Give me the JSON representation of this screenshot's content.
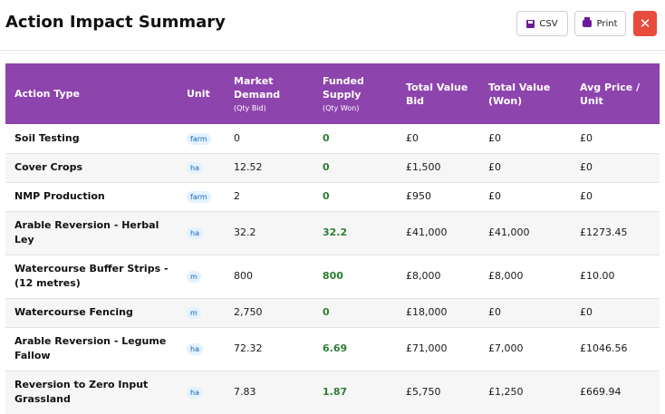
{
  "header": {
    "title": "Action Impact Summary",
    "csv_label": "CSV",
    "print_label": "Print",
    "close_label": "✕"
  },
  "table": {
    "columns": {
      "action": "Action Type",
      "unit": "Unit",
      "demand": "Market Demand",
      "demand_sub": "(Qty Bid)",
      "supply": "Funded Supply",
      "supply_sub": "(Qty Won)",
      "bid": "Total Value Bid",
      "won": "Total Value (Won)",
      "avg": "Avg Price / Unit"
    },
    "rows": [
      {
        "action": "Soil Testing",
        "unit": "farm",
        "demand": "0",
        "supply": "0",
        "bid": "£0",
        "won": "£0",
        "avg": "£0"
      },
      {
        "action": "Cover Crops",
        "unit": "ha",
        "demand": "12.52",
        "supply": "0",
        "bid": "£1,500",
        "won": "£0",
        "avg": "£0"
      },
      {
        "action": "NMP Production",
        "unit": "farm",
        "demand": "2",
        "supply": "0",
        "bid": "£950",
        "won": "£0",
        "avg": "£0"
      },
      {
        "action": "Arable Reversion - Herbal Ley",
        "unit": "ha",
        "demand": "32.2",
        "supply": "32.2",
        "bid": "£41,000",
        "won": "£41,000",
        "avg": "£1273.45"
      },
      {
        "action": "Watercourse Buffer Strips - (12 metres)",
        "unit": "m",
        "demand": "800",
        "supply": "800",
        "bid": "£8,000",
        "won": "£8,000",
        "avg": "£10.00"
      },
      {
        "action": "Watercourse Fencing",
        "unit": "m",
        "demand": "2,750",
        "supply": "0",
        "bid": "£18,000",
        "won": "£0",
        "avg": "£0"
      },
      {
        "action": "Arable Reversion - Legume Fallow",
        "unit": "ha",
        "demand": "72.32",
        "supply": "6.69",
        "bid": "£71,000",
        "won": "£7,000",
        "avg": "£1046.56"
      },
      {
        "action": "Reversion to Zero Input Grassland",
        "unit": "ha",
        "demand": "7.83",
        "supply": "1.87",
        "bid": "£5,750",
        "won": "£1,250",
        "avg": "£669.94"
      }
    ]
  }
}
